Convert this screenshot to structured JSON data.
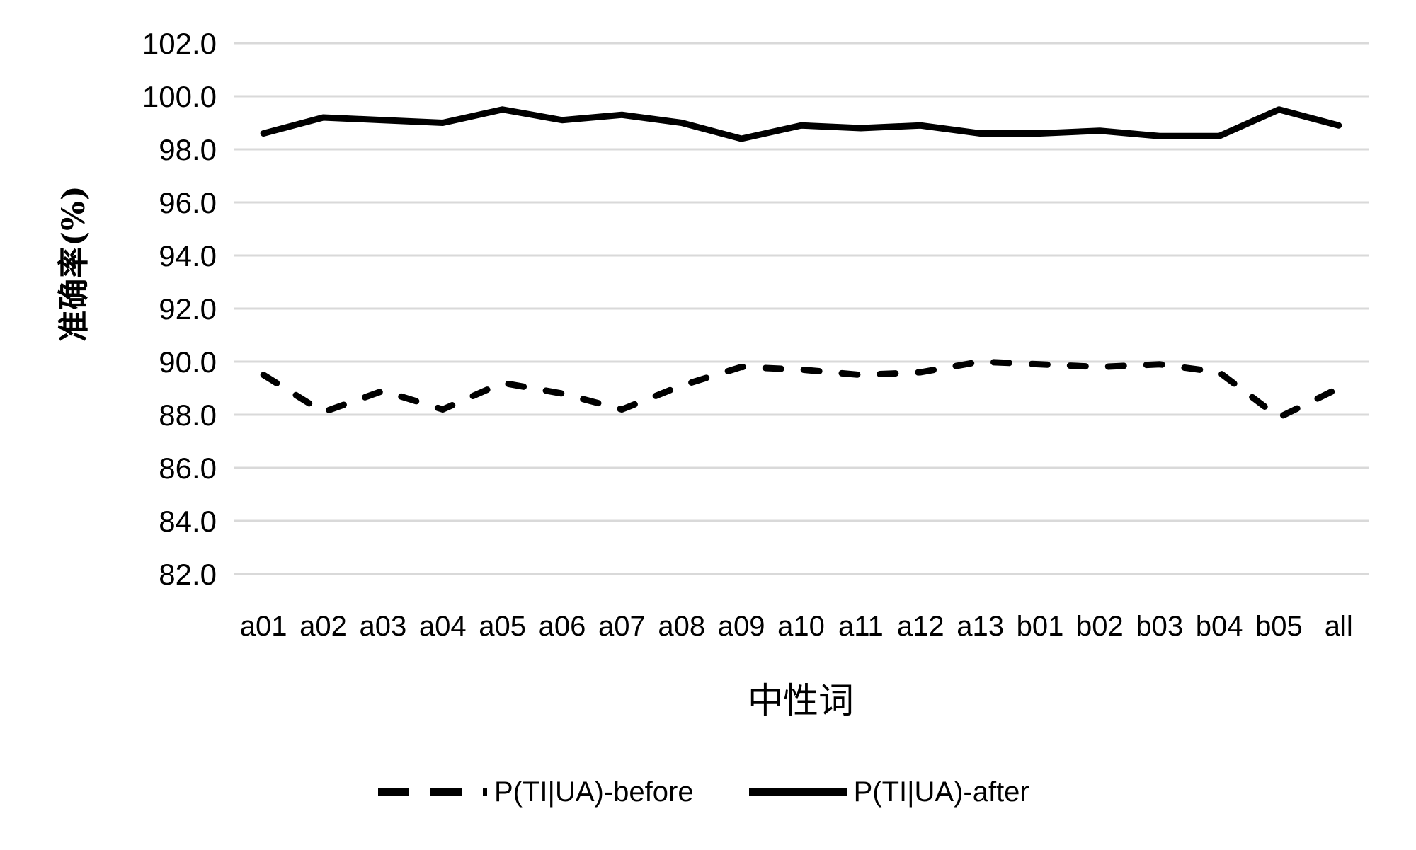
{
  "chart_data": {
    "type": "line",
    "title": "",
    "xlabel": "中性词",
    "ylabel": "准确率(%)",
    "categories": [
      "a01",
      "a02",
      "a03",
      "a04",
      "a05",
      "a06",
      "a07",
      "a08",
      "a09",
      "a10",
      "a11",
      "a12",
      "a13",
      "b01",
      "b02",
      "b03",
      "b04",
      "b05",
      "all"
    ],
    "series": [
      {
        "name": "P(TI|UA)-before",
        "line_style": "dashed",
        "color": "#000000",
        "values": [
          89.5,
          88.1,
          88.9,
          88.2,
          89.2,
          88.8,
          88.2,
          89.1,
          89.8,
          89.7,
          89.5,
          89.6,
          90.0,
          89.9,
          89.8,
          89.9,
          89.6,
          87.9,
          89.0
        ]
      },
      {
        "name": "P(TI|UA)-after",
        "line_style": "solid",
        "color": "#000000",
        "values": [
          98.6,
          99.2,
          99.1,
          99.0,
          99.5,
          99.1,
          99.3,
          99.0,
          98.4,
          98.9,
          98.8,
          98.9,
          98.6,
          98.6,
          98.7,
          98.5,
          98.5,
          99.5,
          98.9
        ]
      }
    ],
    "ylim": [
      82.0,
      102.0
    ],
    "ytick_step": 2.0,
    "ytick_labels": [
      "102.0",
      "100.0",
      "98.0",
      "96.0",
      "94.0",
      "92.0",
      "90.0",
      "88.0",
      "86.0",
      "84.0",
      "82.0"
    ],
    "grid": "horizontal-only",
    "grid_color": "#d9d9d9",
    "legend_position": "bottom"
  }
}
